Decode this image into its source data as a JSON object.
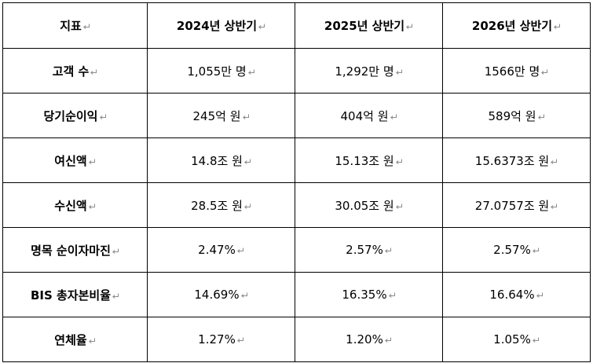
{
  "table": {
    "header": [
      "지표",
      "2024년 상반기",
      "2025년 상반기",
      "2026년 상반기"
    ],
    "rows": [
      {
        "label": "고객 수",
        "values": [
          "1,055만 명",
          "1,292만 명",
          "1566만 명"
        ]
      },
      {
        "label": "당기순이익",
        "values": [
          "245억 원",
          "404억 원",
          "589억 원"
        ]
      },
      {
        "label": "여신액",
        "values": [
          "14.8조 원",
          "15.13조 원",
          "15.6373조 원"
        ]
      },
      {
        "label": "수신액",
        "values": [
          "28.5조 원",
          "30.05조 원",
          "27.0757조 원"
        ]
      },
      {
        "label": "명목 순이자마진",
        "values": [
          "2.47%",
          "2.57%",
          "2.57%"
        ]
      },
      {
        "label": "BIS 총자본비율",
        "values": [
          "14.69%",
          "16.35%",
          "16.64%"
        ]
      },
      {
        "label": "연체율",
        "values": [
          "1.27%",
          "1.20%",
          "1.05%"
        ]
      }
    ]
  },
  "paragraph_mark_icon": "return-arrow-icon",
  "colors": {
    "border": "#000000",
    "mark": "#8c8c8c",
    "text": "#000000"
  }
}
